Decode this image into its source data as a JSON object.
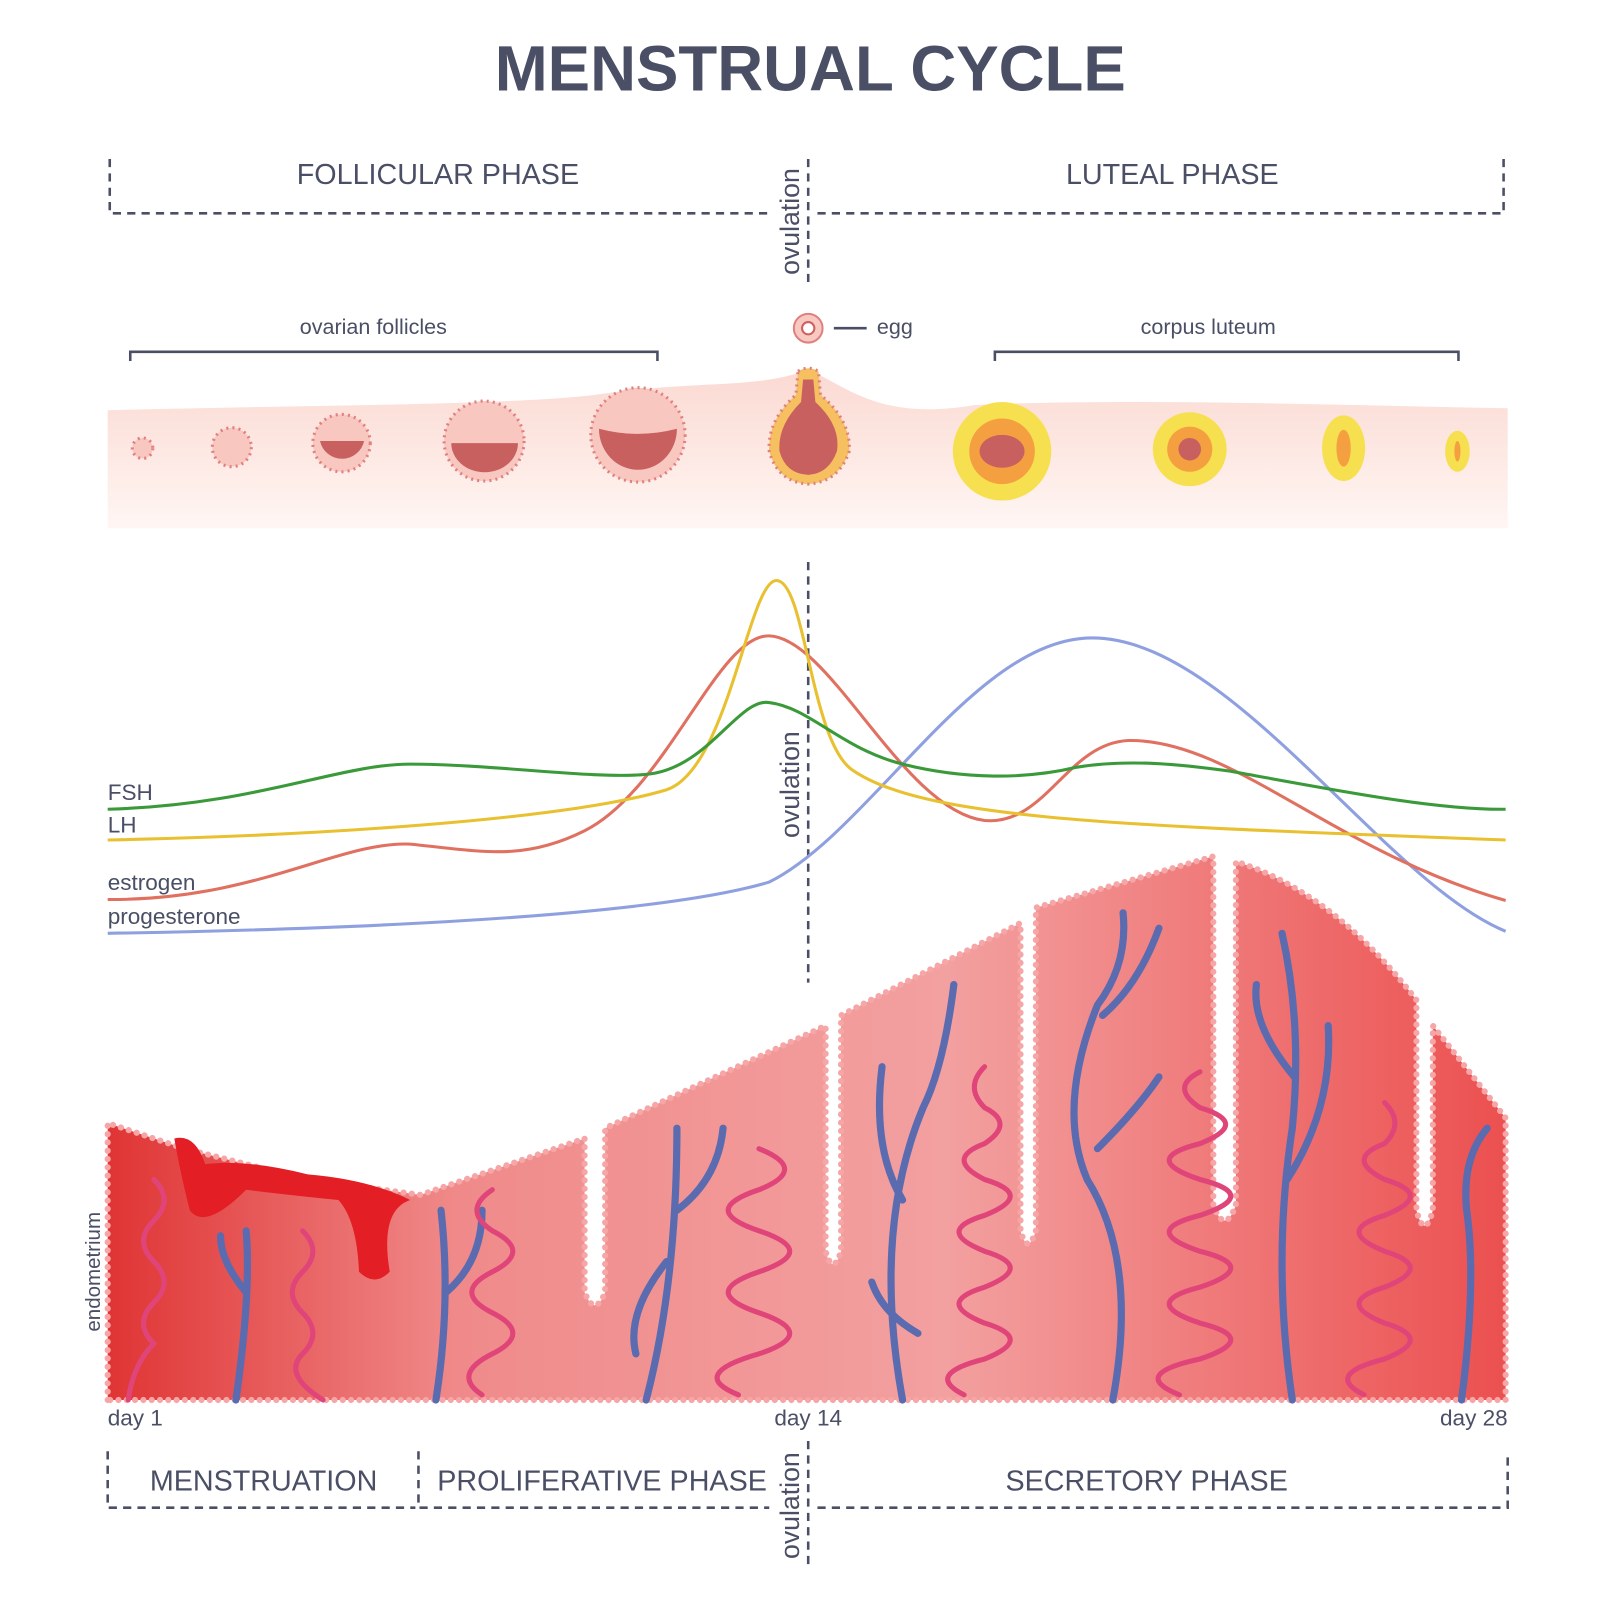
{
  "title": "MENSTRUAL CYCLE",
  "top_phases": {
    "follicular": "FOLLICULAR PHASE",
    "ovulation": "ovulation",
    "luteal": "LUTEAL PHASE"
  },
  "ovary": {
    "follicles": "ovarian follicles",
    "egg": "egg",
    "corpus_luteum": "corpus luteum"
  },
  "hormones": {
    "labels": [
      "FSH",
      "LH",
      "estrogen",
      "progesterone"
    ],
    "ovulation": "ovulation"
  },
  "endometrium": {
    "label": "endometrium",
    "days": [
      "day 1",
      "day 14",
      "day 28"
    ]
  },
  "bottom_phases": {
    "menstruation": "MENSTRUATION",
    "proliferative": "PROLIFERATIVE PHASE",
    "ovulation": "ovulation",
    "secretory": "SECRETORY PHASE"
  }
}
